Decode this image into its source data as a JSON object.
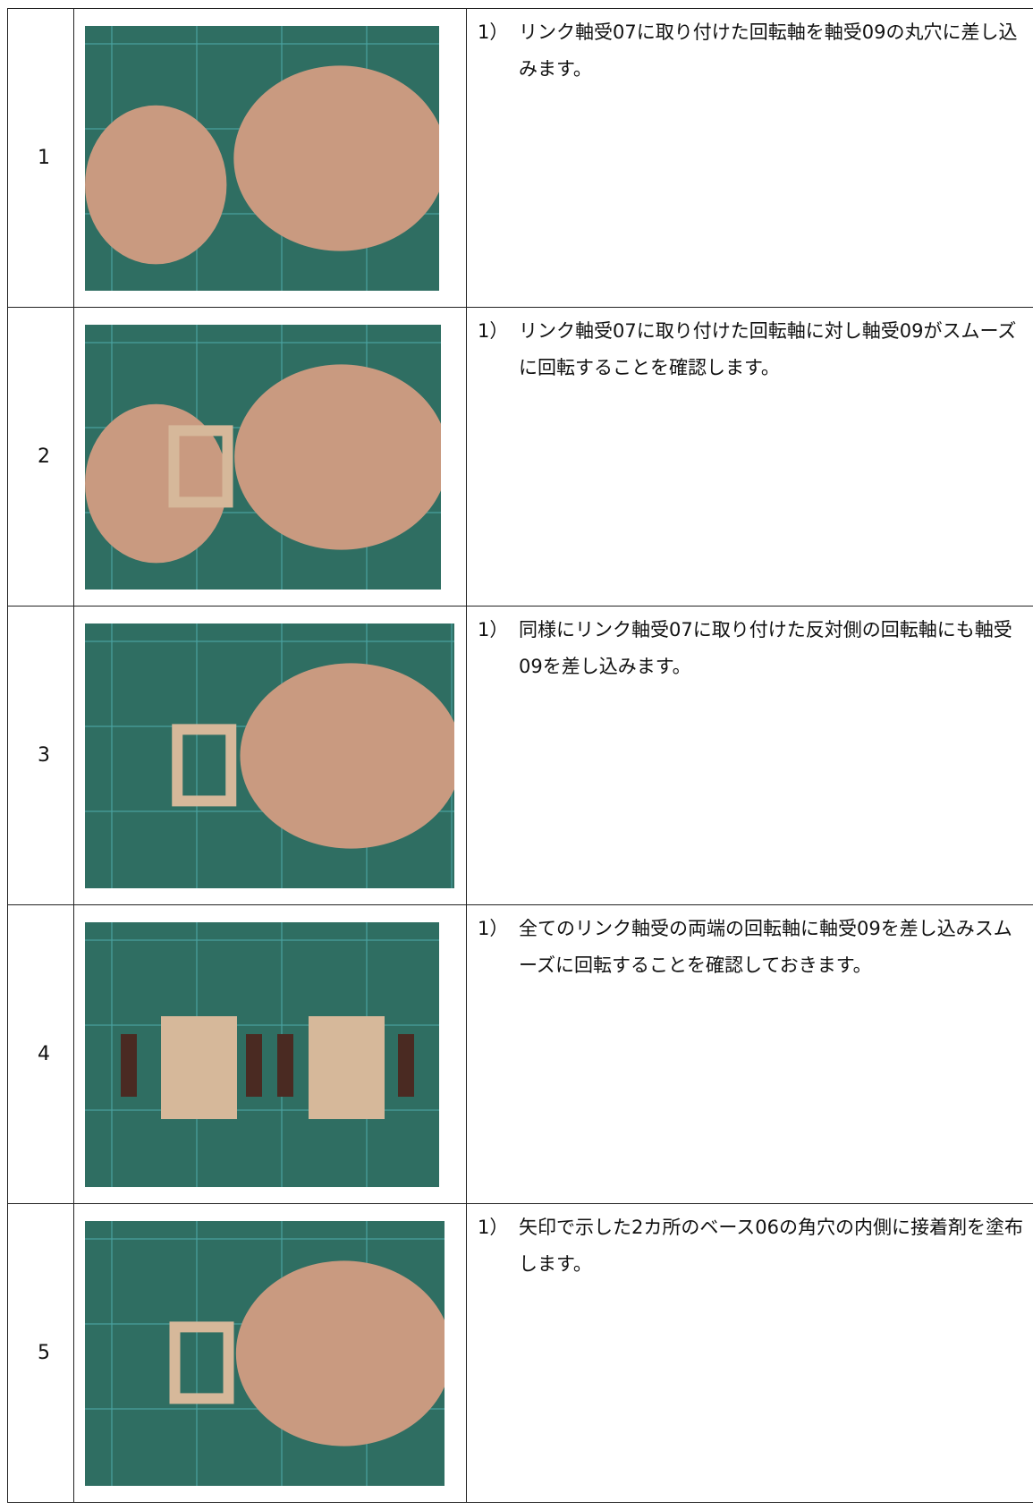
{
  "table": {
    "rows": [
      {
        "number": "1",
        "marker": "1）",
        "text": "リンク軸受07に取り付けた回転軸を軸受09の丸穴に差し込みます。"
      },
      {
        "number": "2",
        "marker": "1）",
        "text": "リンク軸受07に取り付けた回転軸に対し軸受09がスムーズに回転することを確認します。"
      },
      {
        "number": "3",
        "marker": "1）",
        "text": "同様にリンク軸受07に取り付けた反対側の回転軸にも軸受09を差し込みます。"
      },
      {
        "number": "4",
        "marker": "1）",
        "text": "全てのリンク軸受の両端の回転軸に軸受09を差し込みスムーズに回転することを確認しておきます。"
      },
      {
        "number": "5",
        "marker": "1）",
        "text": "矢印で示した2カ所のベース06の角穴の内側に接着剤を塗布します。"
      }
    ]
  }
}
